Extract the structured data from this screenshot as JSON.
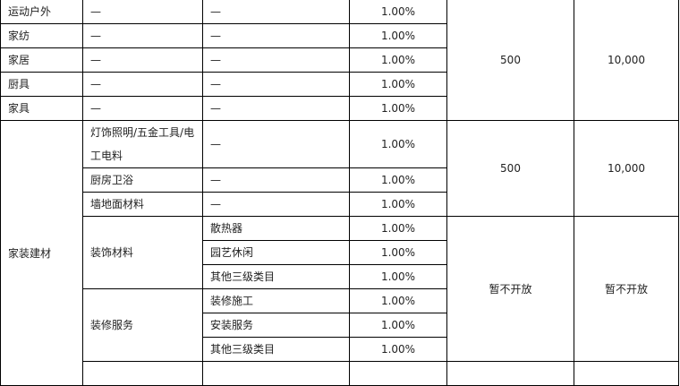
{
  "rows_top": [
    {
      "category": "运动户外",
      "sub": "—",
      "third": "—",
      "rate": "1.00%"
    },
    {
      "category": "家纺",
      "sub": "—",
      "third": "—",
      "rate": "1.00%"
    },
    {
      "category": "家居",
      "sub": "—",
      "third": "—",
      "rate": "1.00%"
    },
    {
      "category": "厨具",
      "sub": "—",
      "third": "—",
      "rate": "1.00%"
    },
    {
      "category": "家具",
      "sub": "—",
      "third": "—",
      "rate": "1.00%"
    }
  ],
  "group_top": {
    "deposit": "500",
    "cap": "10,000"
  },
  "home_building": {
    "category": "家装建材",
    "basic": [
      {
        "sub": "灯饰照明/五金工具/电工电料",
        "third": "—",
        "rate": "1.00%"
      },
      {
        "sub": "厨房卫浴",
        "third": "—",
        "rate": "1.00%"
      },
      {
        "sub": "墙地面材料",
        "third": "—",
        "rate": "1.00%"
      }
    ],
    "basic_deposit": "500",
    "basic_cap": "10,000",
    "decor_materials": {
      "sub": "装饰材料",
      "items": [
        {
          "third": "散热器",
          "rate": "1.00%"
        },
        {
          "third": "园艺休闲",
          "rate": "1.00%"
        },
        {
          "third": "其他三级类目",
          "rate": "1.00%"
        }
      ]
    },
    "decor_services": {
      "sub": "装修服务",
      "items": [
        {
          "third": "装修施工",
          "rate": "1.00%"
        },
        {
          "third": "安装服务",
          "rate": "1.00%"
        },
        {
          "third": "其他三级类目",
          "rate": "1.00%"
        }
      ]
    },
    "closed_deposit": "暂不开放",
    "closed_cap": "暂不开放"
  }
}
